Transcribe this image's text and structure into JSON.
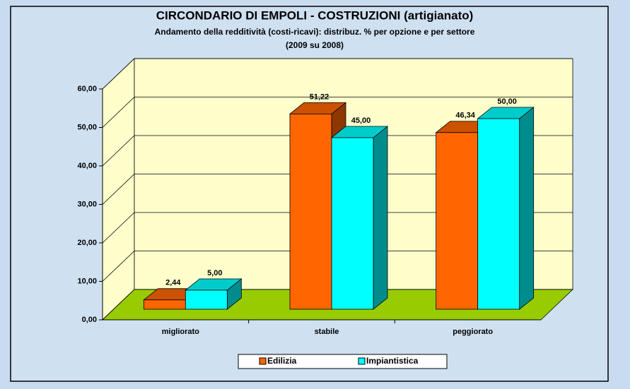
{
  "chart_data": {
    "type": "bar3d",
    "title": "CIRCONDARIO DI EMPOLI - COSTRUZIONI (artigianato)",
    "subtitle": "Andamento della redditività (costi-ricavi): distribuz. % per opzione e per settore",
    "subtitle2": "(2009 su 2008)",
    "categories": [
      "migliorato",
      "stabile",
      "peggiorato"
    ],
    "series": [
      {
        "name": "Edilizia",
        "color": "#FF6600",
        "values": [
          2.44,
          51.22,
          46.34
        ],
        "value_labels": [
          "2,44",
          "51,22",
          "46,34"
        ]
      },
      {
        "name": "Impiantistica",
        "color": "#00FFFF",
        "values": [
          5,
          45,
          50
        ],
        "value_labels": [
          "5,00",
          "45,00",
          "50,00"
        ]
      }
    ],
    "ylim": [
      0,
      60
    ],
    "yticks": [
      {
        "value": 0,
        "label": "0,00"
      },
      {
        "value": 10,
        "label": "10,00"
      },
      {
        "value": 20,
        "label": "20,00"
      },
      {
        "value": 30,
        "label": "30,00"
      },
      {
        "value": 40,
        "label": "40,00"
      },
      {
        "value": 50,
        "label": "50,00"
      },
      {
        "value": 60,
        "label": "60,00"
      }
    ],
    "grid": true,
    "legend": "bottom"
  }
}
